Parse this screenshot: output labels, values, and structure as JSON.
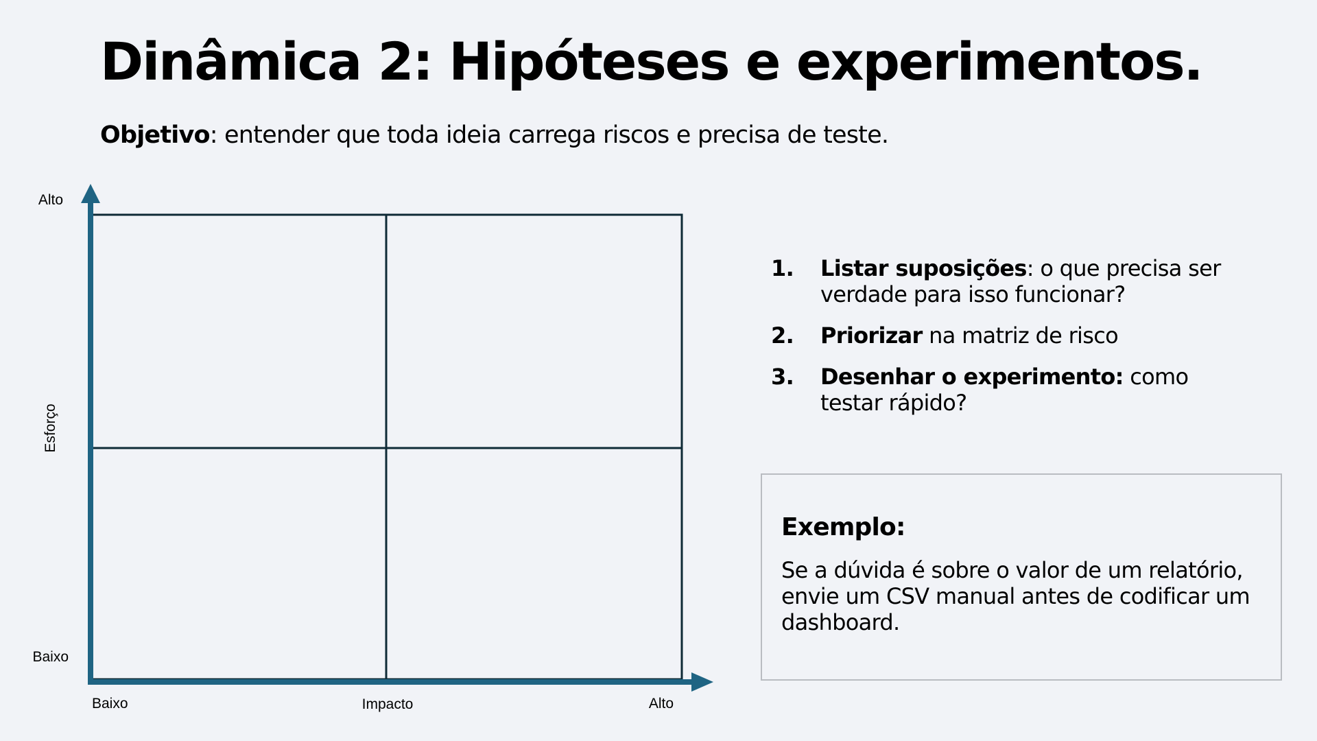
{
  "title": "Dinâmica 2: Hipóteses e experimentos.",
  "subtitle": {
    "label": "Objetivo",
    "text": ": entender que toda ideia carrega riscos e precisa de teste."
  },
  "matrix": {
    "y_axis": {
      "label": "Esforço",
      "high": "Alto",
      "low": "Baixo"
    },
    "x_axis": {
      "label": "Impacto",
      "low": "Baixo",
      "high": "Alto"
    },
    "colors": {
      "axis": "#1f6483",
      "grid": "#0e2a36"
    }
  },
  "steps": [
    {
      "num": "1.",
      "bold": "Listar suposições",
      "text": ": o que precisa ser verdade para isso funcionar?"
    },
    {
      "num": "2.",
      "bold": "Priorizar",
      "text": " na matriz de risco"
    },
    {
      "num": "3.",
      "bold": "Desenhar o experimento:",
      "text": " como testar rápido?"
    }
  ],
  "example": {
    "title": "Exemplo:",
    "text": "Se a dúvida é sobre o valor de um relatório, envie um CSV manual antes de codificar um dashboard."
  }
}
